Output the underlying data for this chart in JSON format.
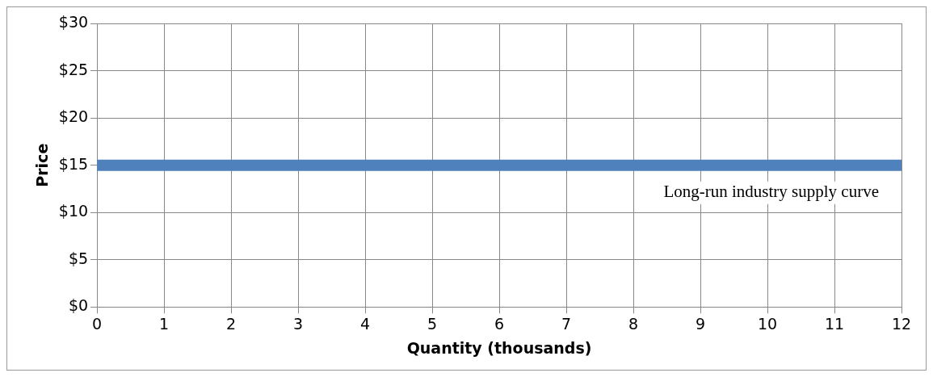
{
  "chart_data": {
    "type": "line",
    "xlabel": "Quantity (thousands)",
    "ylabel": "Price",
    "x": [
      0,
      12
    ],
    "series": [
      {
        "name": "Long-run industry supply curve",
        "color": "#4f81bd",
        "values": [
          15,
          15
        ]
      }
    ],
    "xlim": [
      0,
      12
    ],
    "xticks": [
      0,
      1,
      2,
      3,
      4,
      5,
      6,
      7,
      8,
      9,
      10,
      11,
      12
    ],
    "ylim": [
      0,
      30
    ],
    "yticks": [
      {
        "value": 0,
        "label": "$0"
      },
      {
        "value": 5,
        "label": "$5"
      },
      {
        "value": 10,
        "label": "$10"
      },
      {
        "value": 15,
        "label": "$15"
      },
      {
        "value": 20,
        "label": "$20"
      },
      {
        "value": 25,
        "label": "$25"
      },
      {
        "value": 30,
        "label": "$30"
      }
    ],
    "grid": true,
    "legend": false,
    "marker": "none"
  }
}
